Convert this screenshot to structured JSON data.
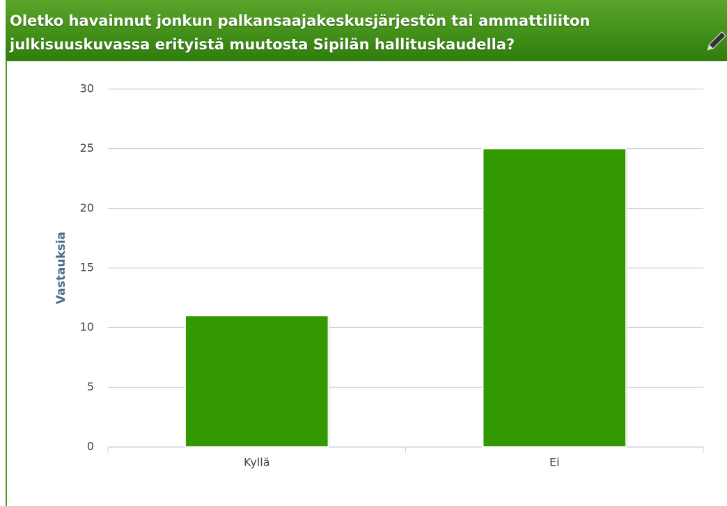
{
  "chart_data": {
    "type": "bar",
    "title": [
      "Oletko havainnut jonkun palkansaajakeskusjärjestön tai ammattiliiton",
      "julkisuuskuvassa erityistä muutosta Sipilän hallituskaudella?"
    ],
    "y_label": "Vastauksia",
    "categories": [
      "Kyllä",
      "Ei"
    ],
    "values": [
      11,
      25
    ],
    "color": "#339900",
    "ylim": [
      0,
      30
    ],
    "yticks": [
      0,
      5,
      10,
      15,
      20,
      25,
      30
    ],
    "grid": true
  }
}
